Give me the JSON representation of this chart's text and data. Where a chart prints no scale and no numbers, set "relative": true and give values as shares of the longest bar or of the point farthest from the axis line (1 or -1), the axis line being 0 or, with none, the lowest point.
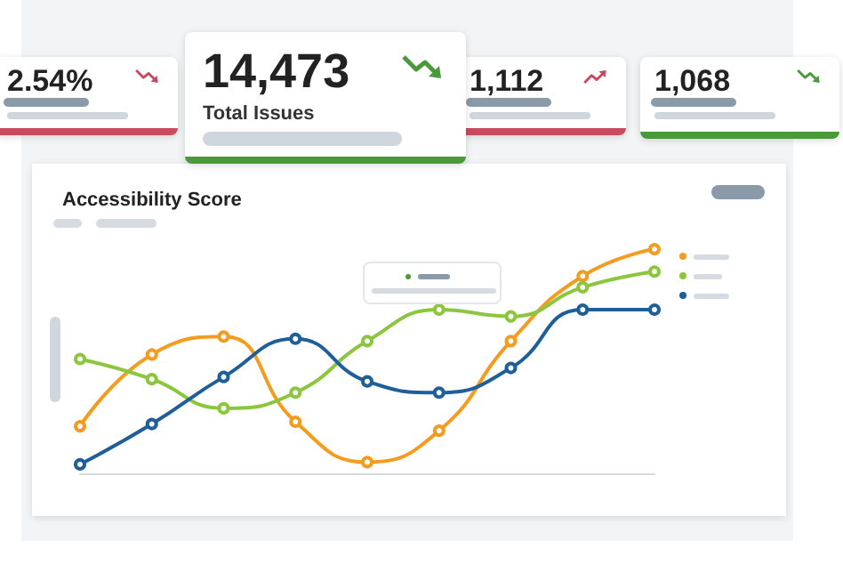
{
  "chart_data": [
    {
      "type": "other",
      "title": "2.54%",
      "color": "#c94a5f"
    },
    {
      "type": "other",
      "title": "14,473",
      "subtitle": "Total Issues",
      "color": "#4a9a3c"
    },
    {
      "type": "other",
      "title": "1,112",
      "color": "#c94a5f"
    },
    {
      "type": "other",
      "title": "1,068",
      "color": "#4a9a3c"
    },
    {
      "type": "line",
      "title": "Accessibility Score",
      "relative": true,
      "marker": "circle",
      "line_style": "solid",
      "categories": [
        null,
        null,
        null,
        null,
        null,
        null,
        null,
        null,
        null
      ],
      "series": [
        {
          "color": "#f39c1f",
          "values": [
            0.21,
            0.53,
            0.61,
            0.23,
            0.05,
            0.19,
            0.59,
            0.88,
            1
          ]
        },
        {
          "color": "#8cc63f",
          "values": [
            0.51,
            0.42,
            0.29,
            0.36,
            0.59,
            0.73,
            0.7,
            0.83,
            0.9
          ]
        },
        {
          "color": "#1f5f99",
          "values": [
            0.04,
            0.22,
            0.43,
            0.6,
            0.41,
            0.36,
            0.47,
            0.73,
            0.73
          ]
        }
      ]
    }
  ]
}
